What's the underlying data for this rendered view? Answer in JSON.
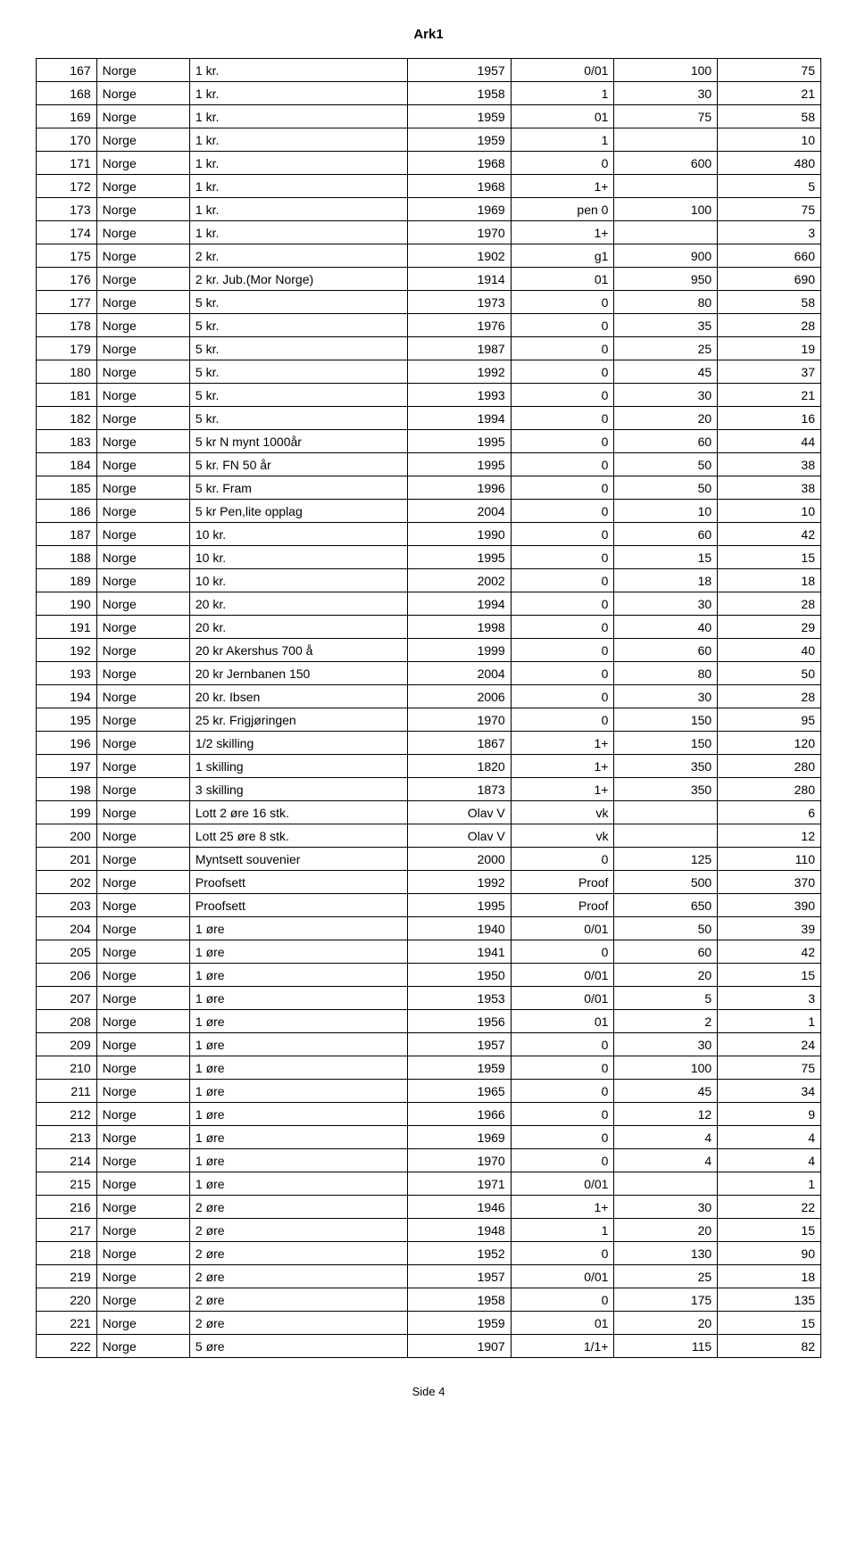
{
  "header": "Ark1",
  "footer": "Side 4",
  "table": {
    "column_count": 7,
    "rows": [
      [
        "167",
        "Norge",
        "1 kr.",
        "1957",
        "0/01",
        "100",
        "75"
      ],
      [
        "168",
        "Norge",
        "1 kr.",
        "1958",
        "1",
        "30",
        "21"
      ],
      [
        "169",
        "Norge",
        "1 kr.",
        "1959",
        "01",
        "75",
        "58"
      ],
      [
        "170",
        "Norge",
        "1 kr.",
        "1959",
        "1",
        "",
        "10"
      ],
      [
        "171",
        "Norge",
        "1 kr.",
        "1968",
        "0",
        "600",
        "480"
      ],
      [
        "172",
        "Norge",
        "1 kr.",
        "1968",
        "1+",
        "",
        "5"
      ],
      [
        "173",
        "Norge",
        "1 kr.",
        "1969",
        "pen 0",
        "100",
        "75"
      ],
      [
        "174",
        "Norge",
        "1 kr.",
        "1970",
        "1+",
        "",
        "3"
      ],
      [
        "175",
        "Norge",
        "2 kr.",
        "1902",
        "g1",
        "900",
        "660"
      ],
      [
        "176",
        "Norge",
        "2 kr. Jub.(Mor Norge)",
        "1914",
        "01",
        "950",
        "690"
      ],
      [
        "177",
        "Norge",
        "5 kr.",
        "1973",
        "0",
        "80",
        "58"
      ],
      [
        "178",
        "Norge",
        "5 kr.",
        "1976",
        "0",
        "35",
        "28"
      ],
      [
        "179",
        "Norge",
        "5 kr.",
        "1987",
        "0",
        "25",
        "19"
      ],
      [
        "180",
        "Norge",
        "5 kr.",
        "1992",
        "0",
        "45",
        "37"
      ],
      [
        "181",
        "Norge",
        "5 kr.",
        "1993",
        "0",
        "30",
        "21"
      ],
      [
        "182",
        "Norge",
        "5 kr.",
        "1994",
        "0",
        "20",
        "16"
      ],
      [
        "183",
        "Norge",
        "5 kr N mynt 1000år",
        "1995",
        "0",
        "60",
        "44"
      ],
      [
        "184",
        "Norge",
        "5 kr. FN 50 år",
        "1995",
        "0",
        "50",
        "38"
      ],
      [
        "185",
        "Norge",
        "5 kr. Fram",
        "1996",
        "0",
        "50",
        "38"
      ],
      [
        "186",
        "Norge",
        "5 kr Pen,lite opplag",
        "2004",
        "0",
        "10",
        "10"
      ],
      [
        "187",
        "Norge",
        "10 kr.",
        "1990",
        "0",
        "60",
        "42"
      ],
      [
        "188",
        "Norge",
        "10 kr.",
        "1995",
        "0",
        "15",
        "15"
      ],
      [
        "189",
        "Norge",
        "10 kr.",
        "2002",
        "0",
        "18",
        "18"
      ],
      [
        "190",
        "Norge",
        "20 kr.",
        "1994",
        "0",
        "30",
        "28"
      ],
      [
        "191",
        "Norge",
        "20 kr.",
        "1998",
        "0",
        "40",
        "29"
      ],
      [
        "192",
        "Norge",
        "20 kr Akershus 700 å",
        "1999",
        "0",
        "60",
        "40"
      ],
      [
        "193",
        "Norge",
        "20 kr Jernbanen 150",
        "2004",
        "0",
        "80",
        "50"
      ],
      [
        "194",
        "Norge",
        "20 kr. Ibsen",
        "2006",
        "0",
        "30",
        "28"
      ],
      [
        "195",
        "Norge",
        "25 kr. Frigjøringen",
        "1970",
        "0",
        "150",
        "95"
      ],
      [
        "196",
        "Norge",
        "1/2 skilling",
        "1867",
        "1+",
        "150",
        "120"
      ],
      [
        "197",
        "Norge",
        "1 skilling",
        "1820",
        "1+",
        "350",
        "280"
      ],
      [
        "198",
        "Norge",
        "3 skilling",
        "1873",
        "1+",
        "350",
        "280"
      ],
      [
        "199",
        "Norge",
        "Lott 2 øre 16 stk.",
        "Olav V",
        "vk",
        "",
        "6"
      ],
      [
        "200",
        "Norge",
        "Lott 25 øre 8 stk.",
        "Olav V",
        "vk",
        "",
        "12"
      ],
      [
        "201",
        "Norge",
        "Myntsett souvenier",
        "2000",
        "0",
        "125",
        "110"
      ],
      [
        "202",
        "Norge",
        "Proofsett",
        "1992",
        "Proof",
        "500",
        "370"
      ],
      [
        "203",
        "Norge",
        "Proofsett",
        "1995",
        "Proof",
        "650",
        "390"
      ],
      [
        "204",
        "Norge",
        "1 øre",
        "1940",
        "0/01",
        "50",
        "39"
      ],
      [
        "205",
        "Norge",
        "1 øre",
        "1941",
        "0",
        "60",
        "42"
      ],
      [
        "206",
        "Norge",
        "1 øre",
        "1950",
        "0/01",
        "20",
        "15"
      ],
      [
        "207",
        "Norge",
        "1 øre",
        "1953",
        "0/01",
        "5",
        "3"
      ],
      [
        "208",
        "Norge",
        "1 øre",
        "1956",
        "01",
        "2",
        "1"
      ],
      [
        "209",
        "Norge",
        "1 øre",
        "1957",
        "0",
        "30",
        "24"
      ],
      [
        "210",
        "Norge",
        "1 øre",
        "1959",
        "0",
        "100",
        "75"
      ],
      [
        "211",
        "Norge",
        "1 øre",
        "1965",
        "0",
        "45",
        "34"
      ],
      [
        "212",
        "Norge",
        "1 øre",
        "1966",
        "0",
        "12",
        "9"
      ],
      [
        "213",
        "Norge",
        "1 øre",
        "1969",
        "0",
        "4",
        "4"
      ],
      [
        "214",
        "Norge",
        "1 øre",
        "1970",
        "0",
        "4",
        "4"
      ],
      [
        "215",
        "Norge",
        "1 øre",
        "1971",
        "0/01",
        "",
        "1"
      ],
      [
        "216",
        "Norge",
        "2 øre",
        "1946",
        "1+",
        "30",
        "22"
      ],
      [
        "217",
        "Norge",
        "2 øre",
        "1948",
        "1",
        "20",
        "15"
      ],
      [
        "218",
        "Norge",
        "2 øre",
        "1952",
        "0",
        "130",
        "90"
      ],
      [
        "219",
        "Norge",
        "2 øre",
        "1957",
        "0/01",
        "25",
        "18"
      ],
      [
        "220",
        "Norge",
        "2 øre",
        "1958",
        "0",
        "175",
        "135"
      ],
      [
        "221",
        "Norge",
        "2 øre",
        "1959",
        "01",
        "20",
        "15"
      ],
      [
        "222",
        "Norge",
        "5 øre",
        "1907",
        "1/1+",
        "115",
        "82"
      ]
    ]
  }
}
